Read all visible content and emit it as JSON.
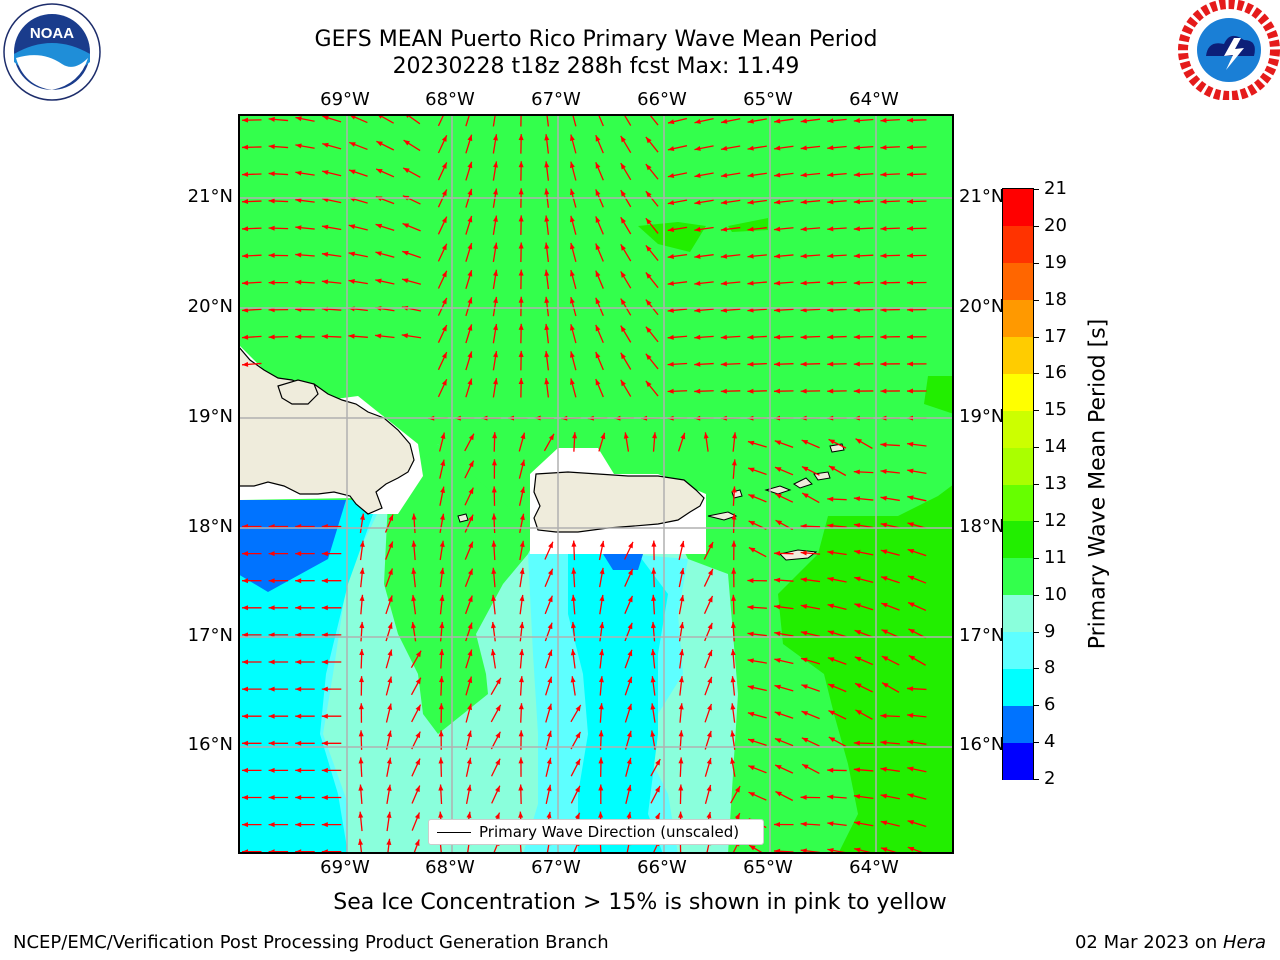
{
  "header": {
    "line1": "GEFS MEAN Puerto Rico Primary Wave Mean Period",
    "line2": "20230228 t18z 288h fcst   Max: 11.49"
  },
  "map": {
    "lon_labels": [
      "69°W",
      "68°W",
      "67°W",
      "66°W",
      "65°W",
      "64°W"
    ],
    "lat_labels": [
      "21°N",
      "20°N",
      "19°N",
      "18°N",
      "17°N",
      "16°N"
    ],
    "lon_range": [
      -70.0,
      -63.3
    ],
    "lat_range": [
      15.0,
      21.75
    ],
    "land_color": "#efecdc",
    "arrow_color": "#ff0000",
    "legend_text": "Primary Wave Direction (unscaled)"
  },
  "colorbar": {
    "label": "Primary Wave Mean Period [s]",
    "ticks": [
      "21",
      "20",
      "19",
      "18",
      "17",
      "16",
      "15",
      "14",
      "13",
      "12",
      "11",
      "10",
      "9",
      "8",
      "6",
      "4",
      "2"
    ],
    "colors": [
      "#0000ff",
      "#0073ff",
      "#00ffff",
      "#5effff",
      "#8affdc",
      "#33ff4c",
      "#22ee00",
      "#66ff00",
      "#aaff00",
      "#ccff00",
      "#ffff00",
      "#ffcc00",
      "#ff9900",
      "#ff6600",
      "#ff3300",
      "#ff0000"
    ]
  },
  "footer": {
    "note": "Sea Ice Concentration > 15% is shown in pink to yellow",
    "credit": "NCEP/EMC/Verification Post Processing Product Generation Branch",
    "date": "02 Mar 2023 on ",
    "machine": "Hera"
  },
  "logos": {
    "left": "NOAA",
    "right": "NATIONAL WEATHER SERVICE"
  }
}
